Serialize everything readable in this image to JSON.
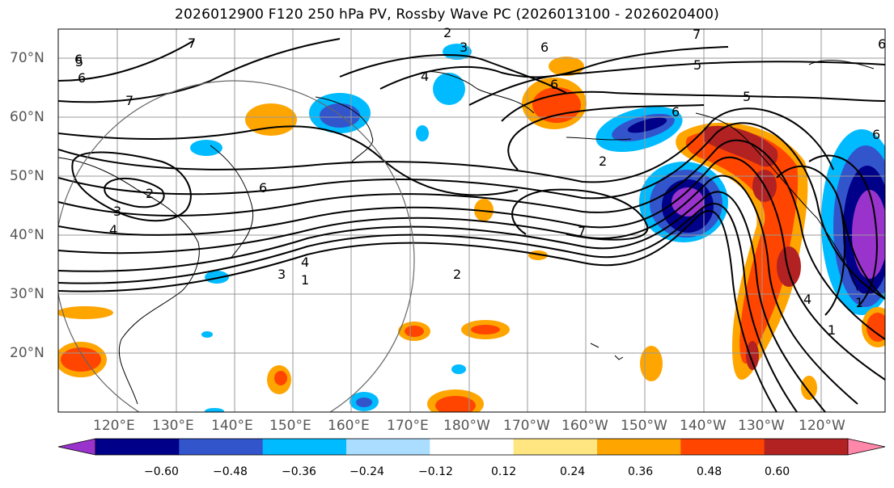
{
  "title": "2026012900 F120 250 hPa PV, Rossby Wave PC (2026013100 - 2026020400)",
  "lat_labels": [
    "70°N",
    "60°N",
    "50°N",
    "40°N",
    "30°N",
    "20°N"
  ],
  "lon_labels": [
    "120°E",
    "130°E",
    "140°E",
    "150°E",
    "160°E",
    "170°E",
    "180°W",
    "170°W",
    "160°W",
    "150°W",
    "140°W",
    "130°W",
    "120°W"
  ],
  "colorbar": {
    "tick_labels": [
      "−0.60",
      "−0.48",
      "−0.36",
      "−0.24",
      "−0.12",
      "0.12",
      "0.24",
      "0.36",
      "0.48",
      "0.60"
    ],
    "colors": [
      "#9933cc",
      "#000088",
      "#3355cc",
      "#00bbff",
      "#aaddff",
      "#ffffff",
      "#ffe680",
      "#ffa500",
      "#ff4500",
      "#b22222",
      "#ff88aa"
    ]
  },
  "contour_labels": [
    "7",
    "2",
    "3",
    "6",
    "4",
    "6",
    "7",
    "5",
    "6",
    "5",
    "2",
    "3",
    "4",
    "2",
    "6",
    "7",
    "6",
    "3",
    "4",
    "5",
    "1",
    "2",
    "7",
    "1",
    "4",
    "1",
    "6",
    "6",
    "6"
  ],
  "colors": {
    "positive_strong": "#b22222",
    "negative_strong": "#000088",
    "contour": "#000000",
    "grid": "#999999"
  }
}
